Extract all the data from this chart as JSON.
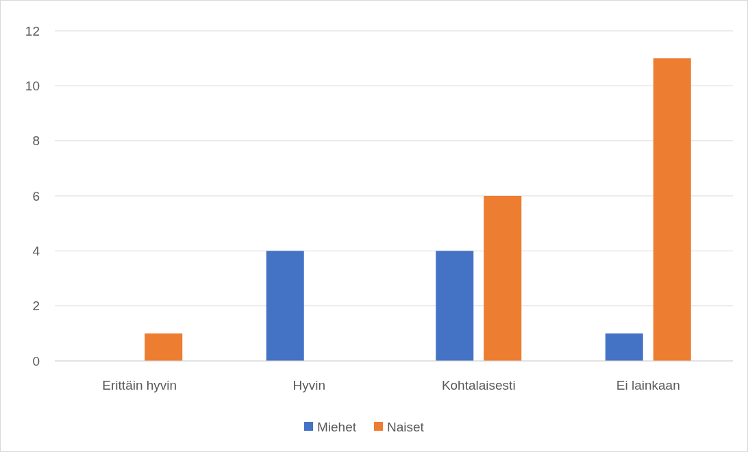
{
  "chart_data": {
    "type": "bar",
    "categories": [
      "Erittäin hyvin",
      "Hyvin",
      "Kohtalaisesti",
      "Ei lainkaan"
    ],
    "series": [
      {
        "name": "Miehet",
        "color": "#4472c4",
        "values": [
          0,
          4,
          4,
          1
        ]
      },
      {
        "name": "Naiset",
        "color": "#ed7d31",
        "values": [
          1,
          0,
          6,
          11
        ]
      }
    ],
    "ylim": [
      0,
      12
    ],
    "yticks": [
      0,
      2,
      4,
      6,
      8,
      10,
      12
    ],
    "grid": "y",
    "legend": "bottom"
  }
}
